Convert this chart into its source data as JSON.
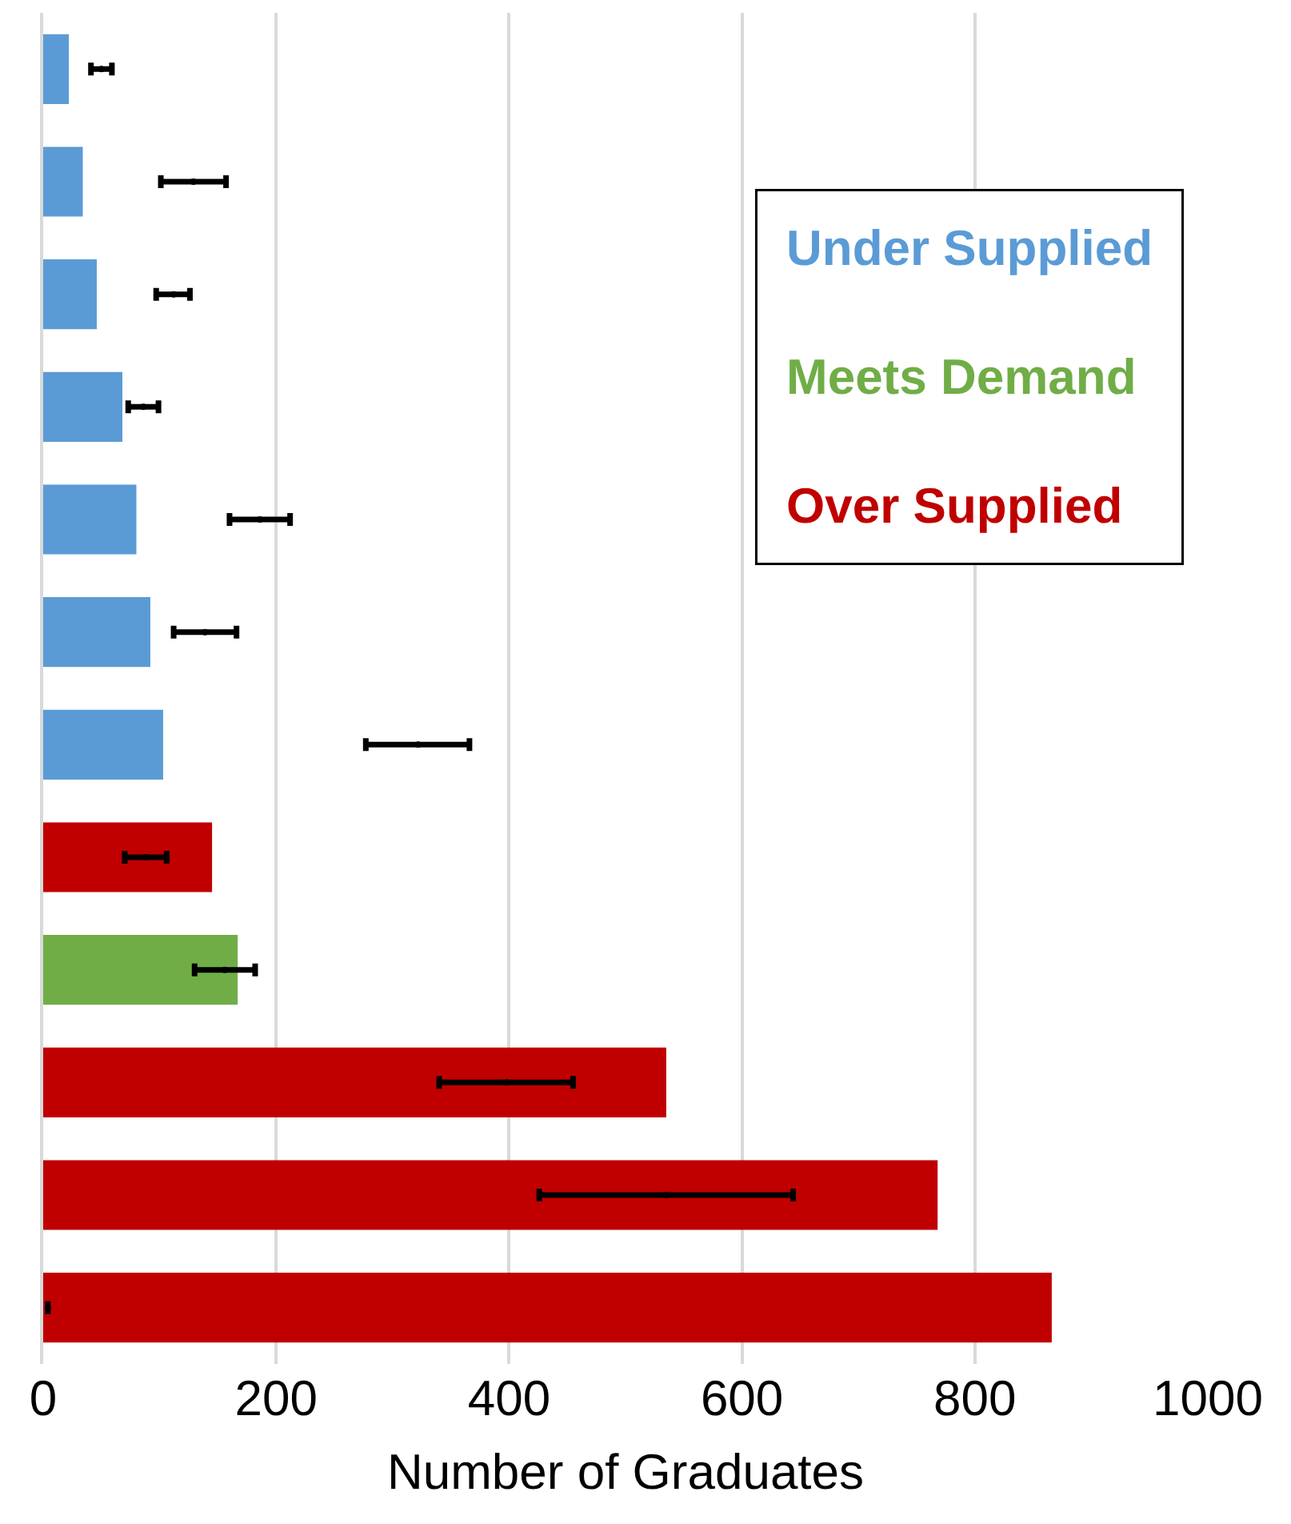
{
  "chart_data": {
    "type": "bar",
    "orientation": "horizontal",
    "categories": [
      null,
      null,
      null,
      null,
      null,
      null,
      null,
      null,
      null,
      null,
      null,
      null
    ],
    "xlabel": "Number of Graduates",
    "xlim": [
      0,
      1000
    ],
    "xticks": [
      0,
      200,
      400,
      600,
      800,
      1000
    ],
    "grid": "x",
    "legend": "top right",
    "tick_labels": "x",
    "series": [
      {
        "name": "Under Supplied",
        "color": "#5b9bd5",
        "values": [
          22,
          34,
          46,
          68,
          80,
          92,
          103,
          null,
          null,
          null,
          null,
          null
        ]
      },
      {
        "name": "Meets Demand",
        "color": "#70ad47",
        "values": [
          null,
          null,
          null,
          null,
          null,
          null,
          null,
          null,
          167,
          null,
          null,
          null
        ]
      },
      {
        "name": "Over Supplied",
        "color": "#c00000",
        "values": [
          null,
          null,
          null,
          null,
          null,
          null,
          null,
          145,
          null,
          535,
          768,
          866
        ]
      },
      {
        "type": "scatter",
        "color": "#000000",
        "values": [
          50,
          129,
          112,
          86,
          186,
          139,
          322,
          88,
          156,
          398,
          535,
          4
        ],
        "errors": [
          [
            41,
            59
          ],
          [
            101,
            157
          ],
          [
            97,
            126
          ],
          [
            73,
            99
          ],
          [
            160,
            212
          ],
          [
            112,
            166
          ],
          [
            277,
            366
          ],
          [
            70,
            106
          ],
          [
            130,
            182
          ],
          [
            340,
            455
          ],
          [
            426,
            644
          ],
          null
        ]
      }
    ]
  }
}
